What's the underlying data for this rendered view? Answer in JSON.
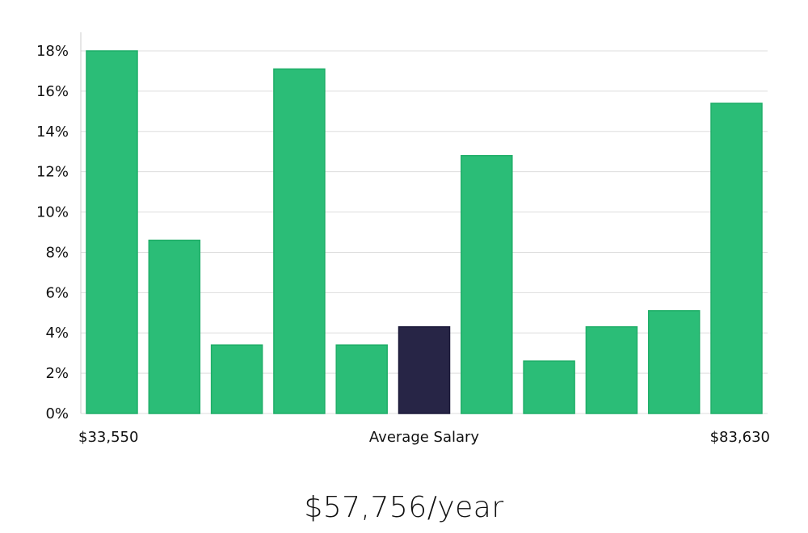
{
  "chart_data": {
    "type": "bar",
    "values": [
      18.0,
      8.6,
      3.4,
      17.1,
      3.4,
      4.3,
      12.8,
      2.6,
      4.3,
      5.1,
      15.4
    ],
    "highlight_index": 5,
    "ylim": [
      0,
      18
    ],
    "yticks": [
      0,
      2,
      4,
      6,
      8,
      10,
      12,
      14,
      16,
      18
    ],
    "ytick_suffix": "%",
    "grid": true,
    "x_min_label": "$33,550",
    "x_center_label": "Average Salary",
    "x_max_label": "$83,630",
    "colors": {
      "bar": "#2bbd77",
      "bar_border": "#1fae68",
      "highlight": "#272546",
      "grid": "#dddddd",
      "axis": "#cccccc"
    }
  },
  "summary": "$57,756/year"
}
